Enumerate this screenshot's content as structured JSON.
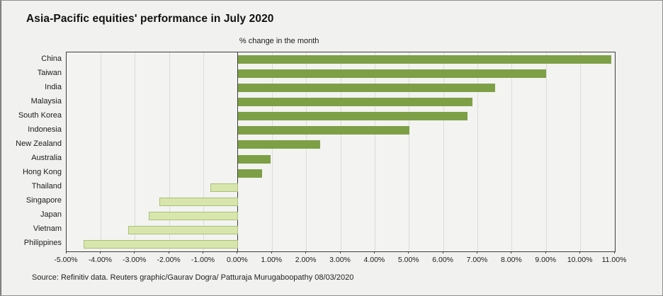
{
  "footer": {
    "source": "Source: Refinitiv data. Reuters graphic/Gaurav Dogra/ Patturaja Murugaboopathy 08/03/2020"
  },
  "chart_data": {
    "type": "bar",
    "orientation": "horizontal",
    "title": "Asia-Pacific equities' performance in July 2020",
    "subtitle": "% change in the month",
    "categories": [
      "China",
      "Taiwan",
      "India",
      "Malaysia",
      "South Korea",
      "Indonesia",
      "New Zealand",
      "Australia",
      "Hong Kong",
      "Thailand",
      "Singapore",
      "Japan",
      "Vietnam",
      "Philippines"
    ],
    "values": [
      10.9,
      9.0,
      7.5,
      6.85,
      6.7,
      5.0,
      2.4,
      0.95,
      0.7,
      -0.8,
      -2.3,
      -2.6,
      -3.2,
      -4.5
    ],
    "xlabel": "",
    "ylabel": "",
    "xlim": [
      -5,
      11
    ],
    "grid": true,
    "legend": false,
    "x_ticks": [
      {
        "v": -5,
        "label": "-5.00%"
      },
      {
        "v": -4,
        "label": "-4.00%"
      },
      {
        "v": -3,
        "label": "-3.00%"
      },
      {
        "v": -2,
        "label": "-2.00%"
      },
      {
        "v": -1,
        "label": "-1.00%"
      },
      {
        "v": 0,
        "label": "0.00%"
      },
      {
        "v": 1,
        "label": "1.00%"
      },
      {
        "v": 2,
        "label": "2.00%"
      },
      {
        "v": 3,
        "label": "3.00%"
      },
      {
        "v": 4,
        "label": "4.00%"
      },
      {
        "v": 5,
        "label": "5.00%"
      },
      {
        "v": 6,
        "label": "6.00%"
      },
      {
        "v": 7,
        "label": "7.00%"
      },
      {
        "v": 8,
        "label": "8.00%"
      },
      {
        "v": 9,
        "label": "9.00%"
      },
      {
        "v": 10,
        "label": "10.00%"
      },
      {
        "v": 11,
        "label": "11.00%"
      }
    ],
    "colors": {
      "positive_bar": "#7da046",
      "negative_bar_fill": "#d8e6ae",
      "negative_bar_border": "#a9c178",
      "plot_border": "#3f3f3f",
      "gridline": "#dcdcda",
      "background": "#f1f1ef"
    }
  }
}
